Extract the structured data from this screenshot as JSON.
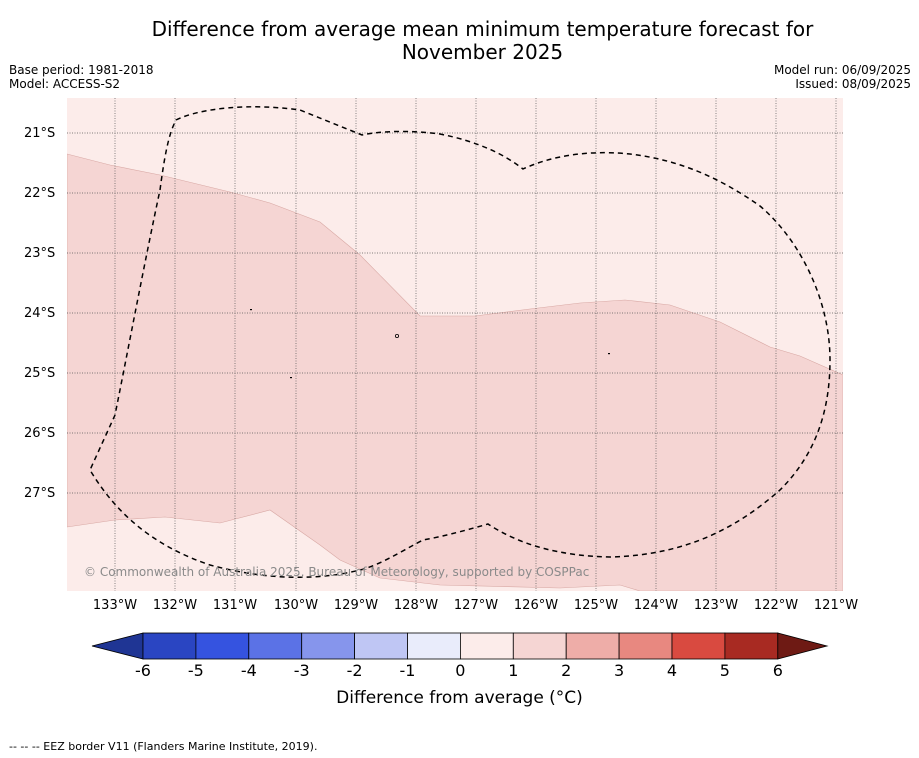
{
  "title_line1": "Difference from average mean minimum temperature forecast for",
  "title_line2": "November 2025",
  "base_period": "Base period: 1981-2018",
  "model": "Model: ACCESS-S2",
  "model_run": "Model run: 06/09/2025",
  "issued": "Issued: 08/09/2025",
  "copyright": "© Commonwealth of Australia 2025, Bureau of Meteorology, supported by COSPPac",
  "footnote": "--  --  -- EEZ border V11 (Flanders Marine Institute, 2019).",
  "lat_labels": [
    "21°S",
    "22°S",
    "23°S",
    "24°S",
    "25°S",
    "26°S",
    "27°S"
  ],
  "lon_labels": [
    "133°W",
    "132°W",
    "131°W",
    "130°W",
    "129°W",
    "128°W",
    "127°W",
    "126°W",
    "125°W",
    "124°W",
    "123°W",
    "122°W",
    "121°W"
  ],
  "colorbar": {
    "title": "Difference from average (°C)",
    "ticks": [
      "-6",
      "-5",
      "-4",
      "-3",
      "-2",
      "-1",
      "0",
      "1",
      "2",
      "3",
      "4",
      "5",
      "6"
    ],
    "colors": [
      "#1f3594",
      "#2a45c2",
      "#3553e0",
      "#5b72e6",
      "#8695ec",
      "#bfc6f4",
      "#e9ecfb",
      "#fcecea",
      "#f5d5d3",
      "#eeada8",
      "#e88880",
      "#d94a40",
      "#a82a22",
      "#6e1a14"
    ]
  },
  "map": {
    "region_colors": {
      "0_to_1": "#fcecea",
      "1_to_2": "#f5d5d3"
    }
  }
}
